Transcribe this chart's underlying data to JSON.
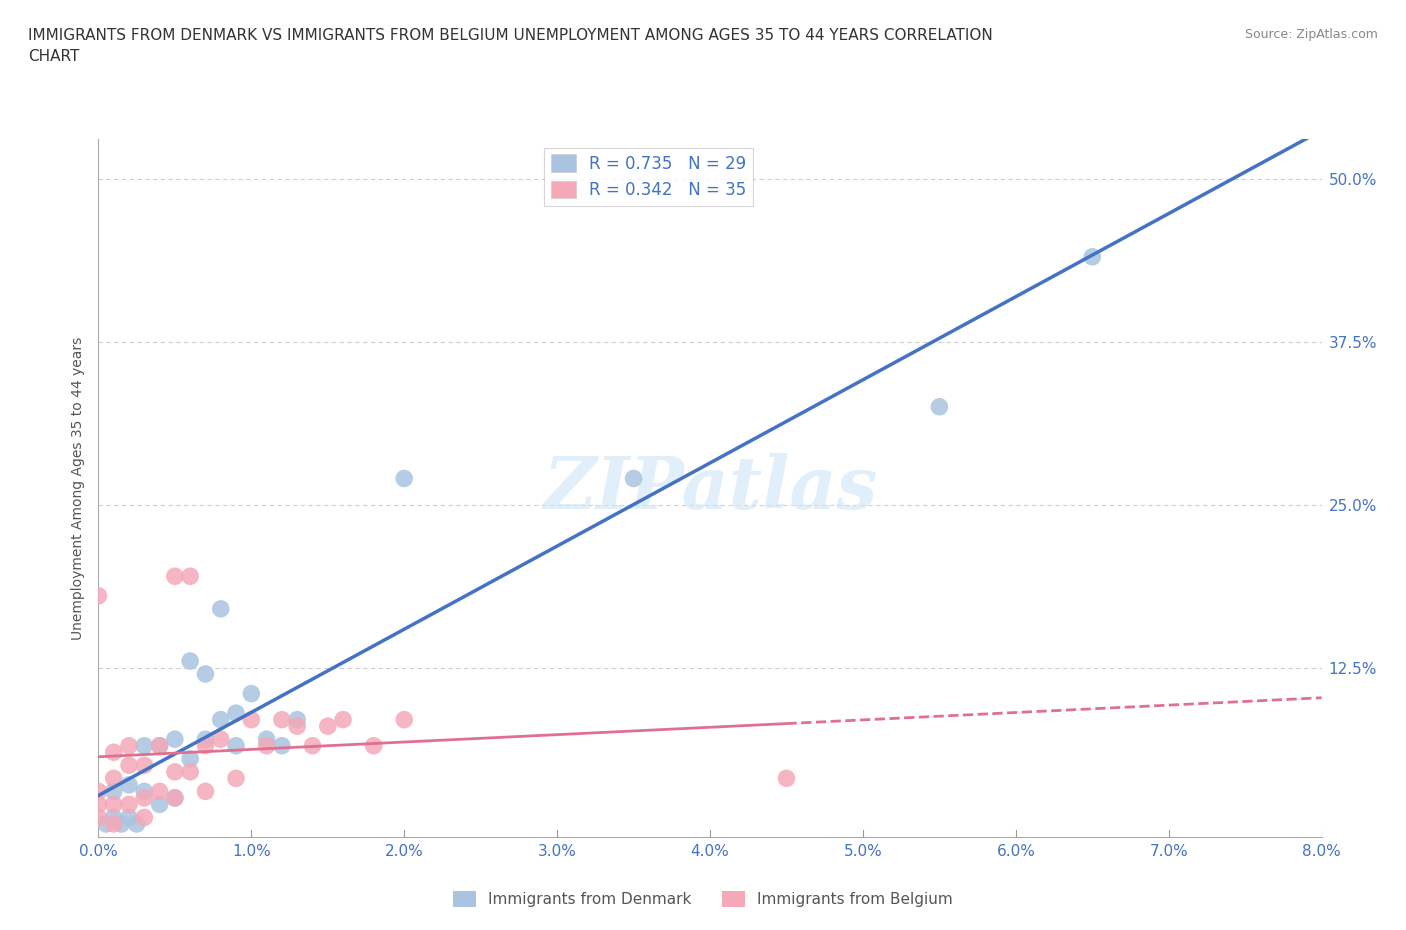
{
  "title": "IMMIGRANTS FROM DENMARK VS IMMIGRANTS FROM BELGIUM UNEMPLOYMENT AMONG AGES 35 TO 44 YEARS CORRELATION\nCHART",
  "source_text": "Source: ZipAtlas.com",
  "ylabel": "Unemployment Among Ages 35 to 44 years",
  "xlim": [
    0.0,
    0.08
  ],
  "ylim": [
    -0.005,
    0.53
  ],
  "xticks": [
    0.0,
    0.01,
    0.02,
    0.03,
    0.04,
    0.05,
    0.06,
    0.07,
    0.08
  ],
  "xticklabels": [
    "0.0%",
    "1.0%",
    "2.0%",
    "3.0%",
    "4.0%",
    "5.0%",
    "6.0%",
    "7.0%",
    "8.0%"
  ],
  "yticks": [
    0.0,
    0.125,
    0.25,
    0.375,
    0.5
  ],
  "yticklabels": [
    "",
    "12.5%",
    "25.0%",
    "37.5%",
    "50.0%"
  ],
  "denmark_color": "#a8c4e0",
  "belgium_color": "#f4a8b8",
  "denmark_R": 0.735,
  "denmark_N": 29,
  "belgium_R": 0.342,
  "belgium_N": 35,
  "denmark_line_color": "#4472c4",
  "belgium_line_color": "#e07090",
  "watermark": "ZIPatlas",
  "denmark_x": [
    0.0005,
    0.001,
    0.001,
    0.0015,
    0.002,
    0.002,
    0.0025,
    0.003,
    0.003,
    0.004,
    0.004,
    0.005,
    0.005,
    0.006,
    0.006,
    0.007,
    0.007,
    0.008,
    0.008,
    0.009,
    0.009,
    0.01,
    0.011,
    0.012,
    0.013,
    0.02,
    0.035,
    0.055,
    0.065
  ],
  "denmark_y": [
    0.005,
    0.01,
    0.03,
    0.005,
    0.01,
    0.035,
    0.005,
    0.03,
    0.065,
    0.02,
    0.065,
    0.025,
    0.07,
    0.13,
    0.055,
    0.07,
    0.12,
    0.085,
    0.17,
    0.065,
    0.09,
    0.105,
    0.07,
    0.065,
    0.085,
    0.27,
    0.27,
    0.325,
    0.44
  ],
  "belgium_x": [
    0.0,
    0.0,
    0.0,
    0.0,
    0.001,
    0.001,
    0.001,
    0.001,
    0.002,
    0.002,
    0.002,
    0.003,
    0.003,
    0.003,
    0.004,
    0.004,
    0.005,
    0.005,
    0.005,
    0.006,
    0.006,
    0.007,
    0.007,
    0.008,
    0.009,
    0.01,
    0.011,
    0.012,
    0.013,
    0.014,
    0.015,
    0.016,
    0.018,
    0.02,
    0.045
  ],
  "belgium_y": [
    0.01,
    0.02,
    0.03,
    0.18,
    0.005,
    0.02,
    0.04,
    0.06,
    0.02,
    0.05,
    0.065,
    0.01,
    0.025,
    0.05,
    0.03,
    0.065,
    0.025,
    0.045,
    0.195,
    0.045,
    0.195,
    0.03,
    0.065,
    0.07,
    0.04,
    0.085,
    0.065,
    0.085,
    0.08,
    0.065,
    0.08,
    0.085,
    0.065,
    0.085,
    0.04
  ],
  "background_color": "#ffffff",
  "grid_color": "#e0e0e0",
  "grid_dash": [
    4,
    3
  ]
}
